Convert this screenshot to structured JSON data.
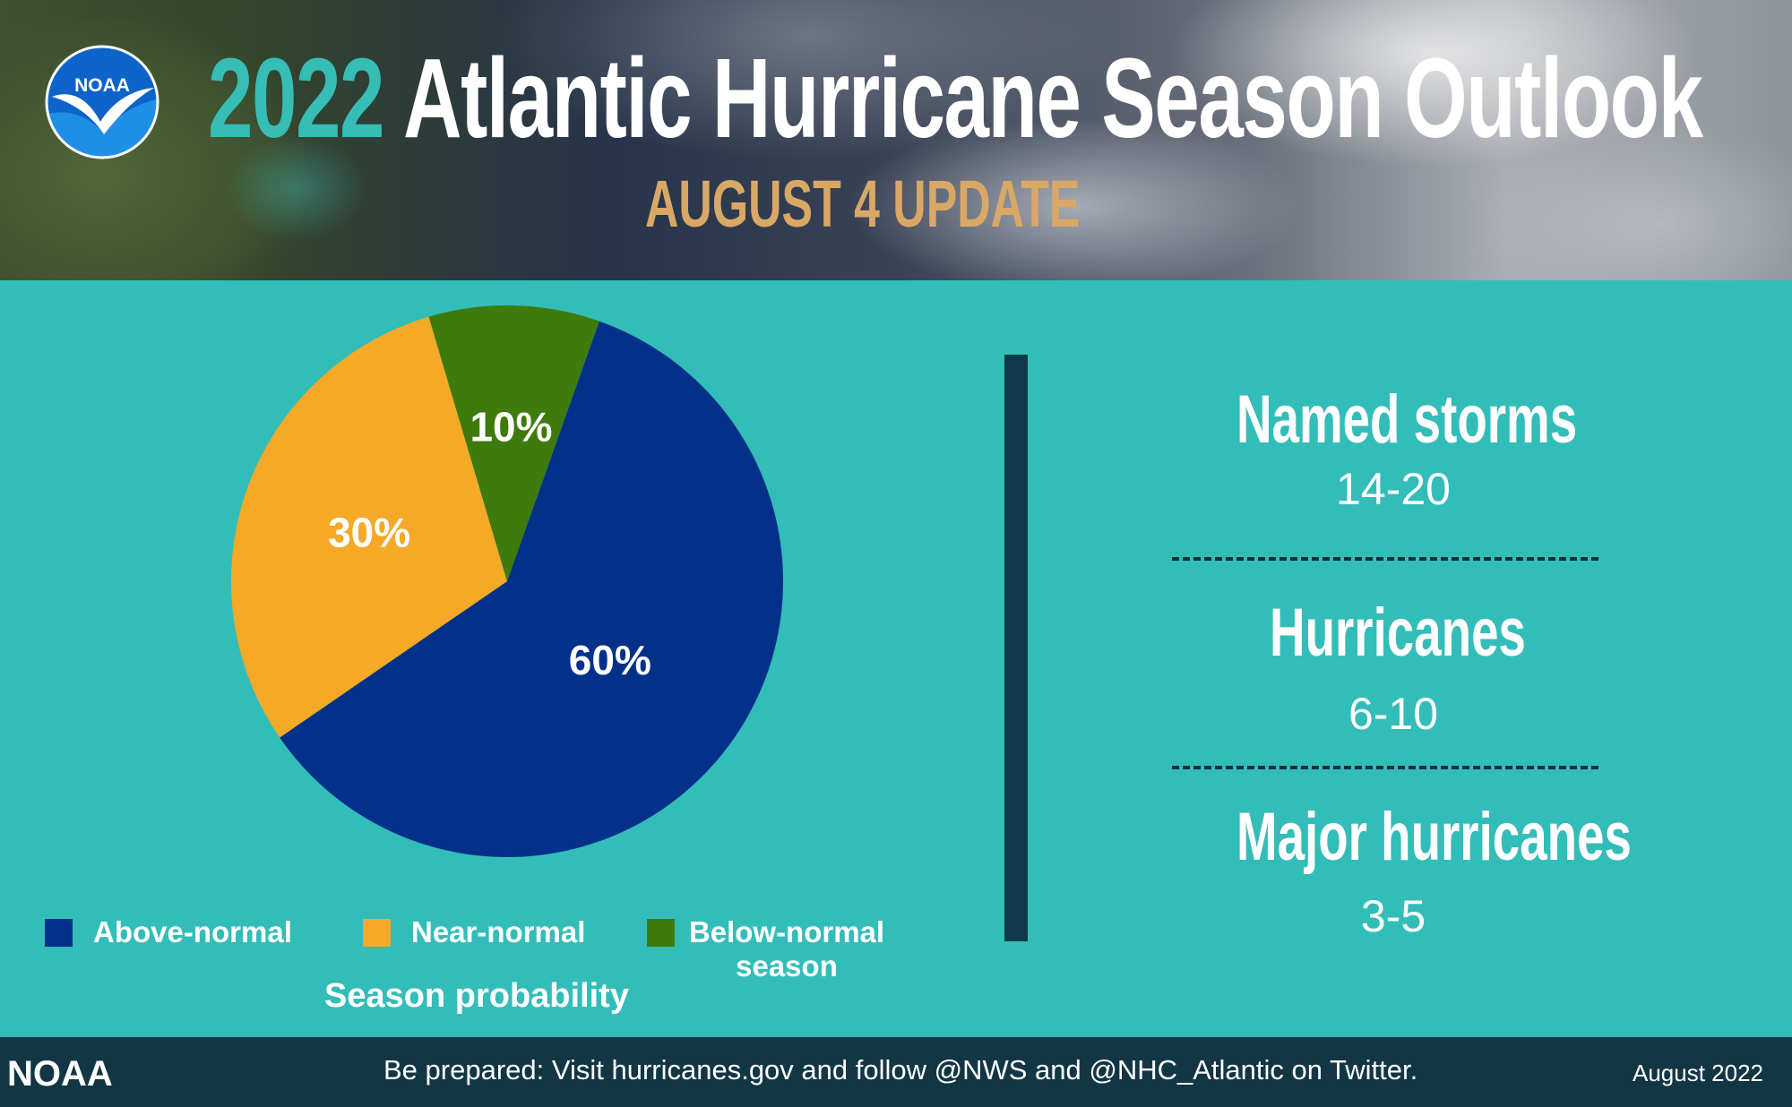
{
  "header": {
    "logo_text": "NOAA",
    "title_year": "2022",
    "title_rest": "Atlantic Hurricane Season Outlook",
    "subtitle": "AUGUST 4 UPDATE"
  },
  "colors": {
    "background": "#33bdb9",
    "above_normal": "#03318a",
    "near_normal": "#f4a927",
    "below_normal": "#3f7a0d",
    "accent_year": "#35bdb6",
    "subtitle": "#d9a867",
    "footer": "#133645"
  },
  "chart_data": {
    "type": "pie",
    "title": "Season probability",
    "slices": [
      {
        "name": "Above-normal",
        "value": 60,
        "label": "60%",
        "color": "#03318a"
      },
      {
        "name": "Near-normal",
        "value": 30,
        "label": "30%",
        "color": "#f4a927"
      },
      {
        "name": "Below-normal season",
        "value": 10,
        "label": "10%",
        "color": "#3f7a0d"
      }
    ],
    "legend_placement": "bottom"
  },
  "legend": {
    "above": "Above-normal",
    "near": "Near-normal",
    "below_line1": "Below-normal",
    "below_line2": "season",
    "caption": "Season probability"
  },
  "stats": [
    {
      "title": "Named storms",
      "value": "14-20"
    },
    {
      "title": "Hurricanes",
      "value": "6-10"
    },
    {
      "title": "Major hurricanes",
      "value": "3-5"
    }
  ],
  "footer": {
    "brand": "NOAA",
    "message": "Be prepared: Visit hurricanes.gov and follow @NWS and @NHC_Atlantic on Twitter.",
    "date": "August 2022"
  }
}
